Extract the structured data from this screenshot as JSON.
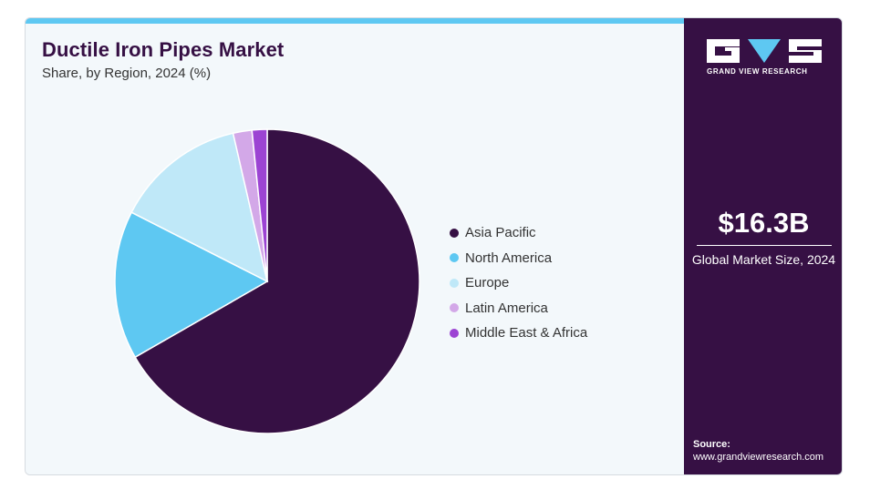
{
  "header": {
    "title": "Ductile Iron Pipes Market",
    "subtitle": "Share, by Region, 2024 (%)"
  },
  "chart_data": {
    "type": "pie",
    "title": "Ductile Iron Pipes Market",
    "subtitle": "Share, by Region, 2024 (%)",
    "categories": [
      "Asia Pacific",
      "North America",
      "Europe",
      "Latin America",
      "Middle East & Africa"
    ],
    "values": [
      66.7,
      15.8,
      13.9,
      2.0,
      1.6
    ],
    "colors": [
      "#361044",
      "#5ec8f2",
      "#bfe8f8",
      "#d3a8e8",
      "#9c44d3"
    ],
    "legend_position": "right"
  },
  "sidebar": {
    "logo_text": "GRAND VIEW RESEARCH",
    "stat_value": "$16.3B",
    "stat_label": "Global Market Size, 2024",
    "source_label": "Source:",
    "source_url": "www.grandviewresearch.com"
  }
}
